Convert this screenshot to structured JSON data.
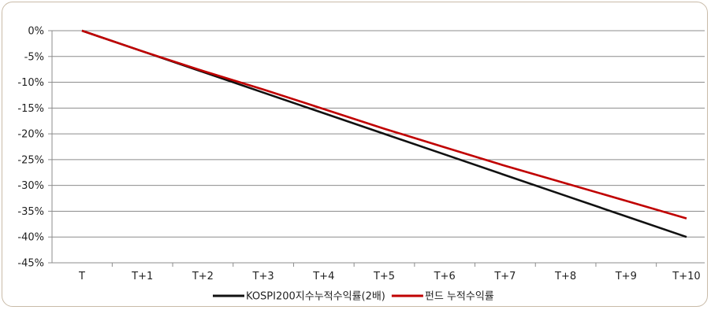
{
  "chart_data": {
    "type": "line",
    "categories": [
      "T",
      "T+1",
      "T+2",
      "T+3",
      "T+4",
      "T+5",
      "T+6",
      "T+7",
      "T+8",
      "T+9",
      "T+10"
    ],
    "y_ticks": [
      "0%",
      "-5%",
      "-10%",
      "-15%",
      "-20%",
      "-25%",
      "-30%",
      "-35%",
      "-40%",
      "-45%"
    ],
    "ylim": [
      -45,
      0
    ],
    "grid": true,
    "legend_position": "bottom",
    "series": [
      {
        "name": "KOSPI200지수누적수익률(2배)",
        "color": "#111111",
        "values": [
          0,
          -4,
          -8,
          -12,
          -16,
          -20,
          -24,
          -28,
          -32,
          -36,
          -40
        ]
      },
      {
        "name": "펀드 누적수익률",
        "color": "#c00000",
        "values": [
          0,
          -4,
          -7.8,
          -11.4,
          -15.2,
          -19.0,
          -22.6,
          -26.2,
          -29.6,
          -33.0,
          -36.4
        ]
      }
    ]
  }
}
